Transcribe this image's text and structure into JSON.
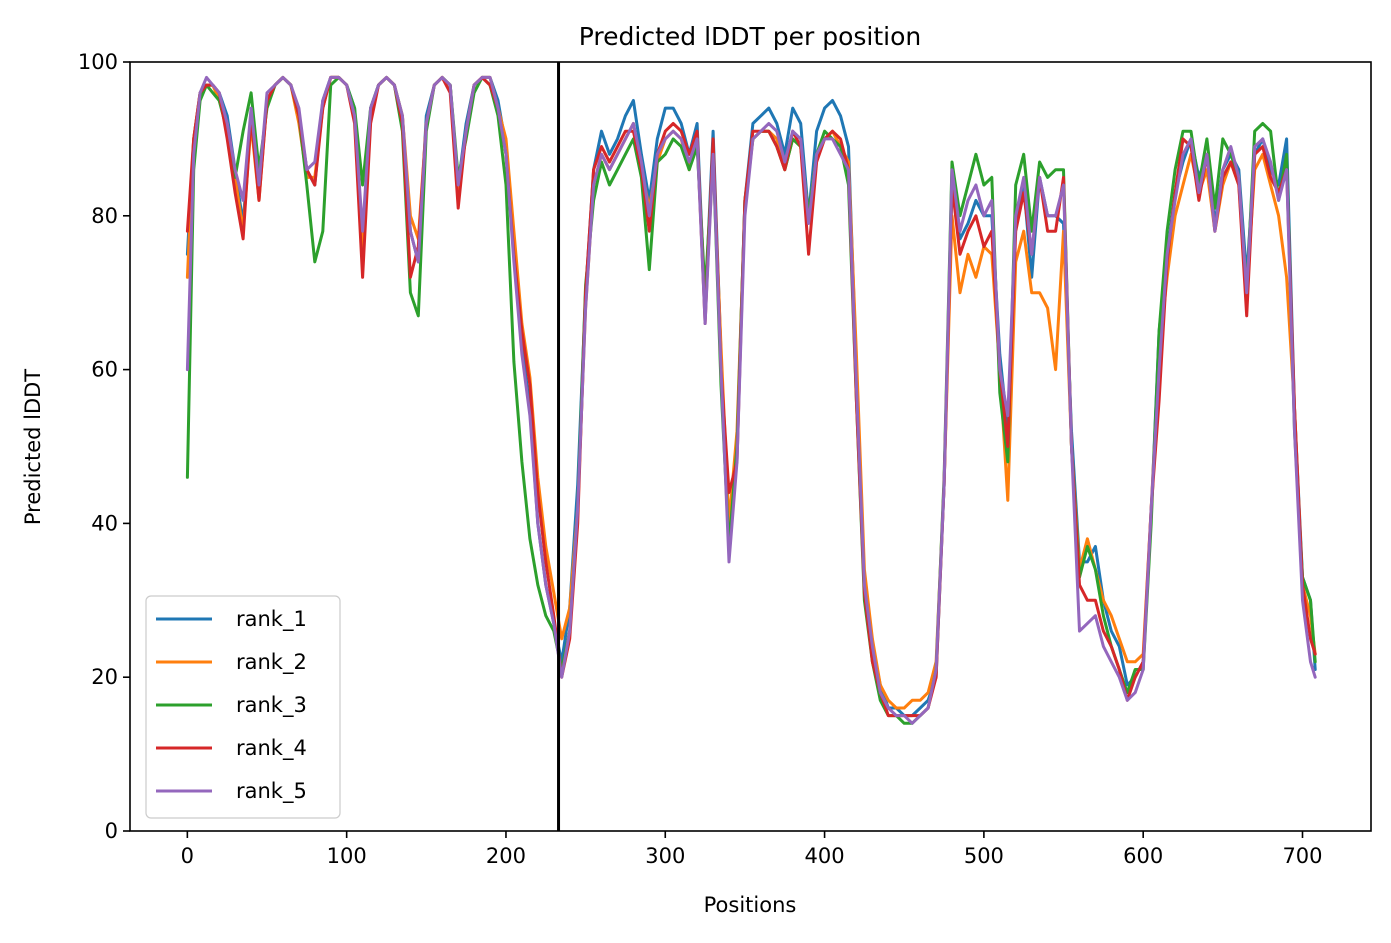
{
  "chart_data": {
    "type": "line",
    "title": "Predicted lDDT per position",
    "xlabel": "Positions",
    "ylabel": "Predicted lDDT",
    "xlim": [
      -36,
      743
    ],
    "ylim": [
      0,
      100
    ],
    "xticks": [
      0,
      100,
      200,
      300,
      400,
      500,
      600,
      700
    ],
    "yticks": [
      0,
      20,
      40,
      60,
      80,
      100
    ],
    "xtick_labels": [
      "0",
      "100",
      "200",
      "300",
      "400",
      "500",
      "600",
      "700"
    ],
    "ytick_labels": [
      "0",
      "20",
      "40",
      "60",
      "80",
      "100"
    ],
    "grid": false,
    "legend_position": "lower-left",
    "vertical_line": {
      "x": 233,
      "color": "#000000"
    },
    "x": [
      0,
      4,
      8,
      12,
      16,
      20,
      25,
      30,
      35,
      40,
      45,
      50,
      55,
      60,
      65,
      70,
      75,
      80,
      85,
      90,
      95,
      100,
      105,
      110,
      115,
      120,
      125,
      130,
      135,
      140,
      145,
      150,
      155,
      160,
      165,
      170,
      175,
      180,
      185,
      190,
      195,
      200,
      205,
      210,
      215,
      220,
      225,
      230,
      235,
      240,
      245,
      250,
      255,
      260,
      265,
      270,
      275,
      280,
      285,
      290,
      295,
      300,
      305,
      310,
      315,
      320,
      325,
      330,
      335,
      340,
      345,
      350,
      355,
      360,
      365,
      370,
      375,
      380,
      385,
      390,
      395,
      400,
      405,
      410,
      415,
      420,
      425,
      430,
      435,
      440,
      445,
      450,
      455,
      460,
      465,
      470,
      475,
      480,
      485,
      490,
      495,
      500,
      505,
      510,
      515,
      520,
      525,
      530,
      535,
      540,
      545,
      550,
      555,
      560,
      565,
      570,
      575,
      580,
      585,
      590,
      595,
      600,
      605,
      610,
      615,
      620,
      625,
      630,
      635,
      640,
      645,
      650,
      655,
      660,
      665,
      670,
      675,
      680,
      685,
      690,
      695,
      700,
      705,
      708
    ],
    "series": [
      {
        "name": "rank_1",
        "color": "#1f77b4",
        "values": [
          75,
          90,
          96,
          97,
          97,
          96,
          93,
          86,
          79,
          93,
          83,
          95,
          97,
          98,
          97,
          93,
          86,
          84,
          95,
          98,
          98,
          97,
          94,
          73,
          94,
          97,
          98,
          97,
          93,
          78,
          74,
          93,
          97,
          98,
          97,
          84,
          92,
          97,
          98,
          98,
          95,
          89,
          75,
          63,
          55,
          40,
          32,
          27,
          22,
          29,
          45,
          70,
          86,
          91,
          88,
          90,
          93,
          95,
          88,
          82,
          90,
          94,
          94,
          92,
          88,
          92,
          68,
          91,
          62,
          38,
          50,
          82,
          92,
          93,
          94,
          92,
          88,
          94,
          92,
          80,
          91,
          94,
          95,
          93,
          89,
          60,
          32,
          24,
          19,
          16,
          16,
          15,
          15,
          16,
          17,
          20,
          45,
          84,
          77,
          79,
          82,
          80,
          80,
          62,
          52,
          79,
          84,
          72,
          85,
          80,
          80,
          79,
          52,
          35,
          35,
          37,
          30,
          26,
          24,
          19,
          20,
          22,
          41,
          65,
          75,
          83,
          87,
          90,
          85,
          88,
          79,
          86,
          88,
          86,
          72,
          88,
          90,
          86,
          84,
          90,
          55,
          33,
          30,
          21
        ]
      },
      {
        "name": "rank_2",
        "color": "#ff7f0e",
        "values": [
          72,
          90,
          96,
          97,
          97,
          95,
          92,
          85,
          78,
          92,
          82,
          95,
          97,
          98,
          97,
          92,
          85,
          85,
          94,
          98,
          98,
          97,
          93,
          76,
          93,
          97,
          98,
          97,
          93,
          80,
          77,
          92,
          97,
          98,
          97,
          82,
          91,
          97,
          98,
          98,
          94,
          90,
          78,
          66,
          59,
          46,
          37,
          31,
          25,
          29,
          42,
          68,
          84,
          88,
          86,
          88,
          90,
          92,
          86,
          81,
          87,
          90,
          91,
          90,
          86,
          90,
          67,
          88,
          63,
          40,
          52,
          81,
          90,
          91,
          91,
          90,
          86,
          90,
          89,
          80,
          88,
          90,
          91,
          89,
          87,
          62,
          34,
          25,
          19,
          17,
          16,
          16,
          17,
          17,
          18,
          22,
          45,
          80,
          70,
          75,
          72,
          76,
          75,
          60,
          43,
          74,
          78,
          70,
          70,
          68,
          60,
          78,
          50,
          34,
          38,
          34,
          30,
          28,
          25,
          22,
          22,
          23,
          42,
          62,
          72,
          80,
          84,
          88,
          83,
          86,
          78,
          84,
          87,
          84,
          70,
          86,
          88,
          84,
          80,
          72,
          55,
          32,
          28,
          23
        ]
      },
      {
        "name": "rank_3",
        "color": "#2ca02c",
        "values": [
          46,
          86,
          95,
          97,
          96,
          95,
          91,
          85,
          91,
          96,
          86,
          94,
          97,
          98,
          97,
          93,
          84,
          74,
          78,
          97,
          98,
          97,
          94,
          84,
          94,
          97,
          98,
          97,
          91,
          70,
          67,
          91,
          97,
          98,
          97,
          85,
          90,
          96,
          98,
          97,
          93,
          84,
          61,
          48,
          38,
          32,
          28,
          26,
          21,
          26,
          42,
          71,
          82,
          87,
          84,
          86,
          88,
          90,
          85,
          73,
          87,
          88,
          90,
          89,
          86,
          89,
          70,
          88,
          58,
          37,
          50,
          82,
          90,
          91,
          91,
          89,
          86,
          90,
          89,
          80,
          88,
          91,
          90,
          89,
          84,
          56,
          30,
          22,
          17,
          15,
          15,
          14,
          14,
          15,
          16,
          21,
          46,
          87,
          80,
          84,
          88,
          84,
          85,
          57,
          48,
          84,
          88,
          78,
          87,
          85,
          86,
          86,
          50,
          33,
          37,
          34,
          28,
          24,
          21,
          18,
          21,
          21,
          40,
          65,
          78,
          86,
          91,
          91,
          84,
          90,
          81,
          90,
          88,
          85,
          70,
          91,
          92,
          91,
          82,
          88,
          52,
          33,
          30,
          22
        ]
      },
      {
        "name": "rank_4",
        "color": "#d62728",
        "values": [
          78,
          90,
          96,
          97,
          97,
          96,
          90,
          83,
          77,
          93,
          82,
          95,
          97,
          98,
          97,
          93,
          86,
          84,
          94,
          98,
          98,
          97,
          92,
          72,
          92,
          97,
          98,
          97,
          92,
          72,
          76,
          92,
          97,
          98,
          96,
          81,
          91,
          97,
          98,
          97,
          94,
          88,
          75,
          65,
          58,
          44,
          35,
          28,
          20,
          25,
          40,
          70,
          86,
          89,
          87,
          89,
          91,
          91,
          86,
          78,
          88,
          91,
          92,
          91,
          88,
          91,
          66,
          90,
          60,
          44,
          48,
          82,
          91,
          91,
          91,
          89,
          86,
          91,
          89,
          75,
          87,
          90,
          91,
          90,
          86,
          56,
          31,
          22,
          18,
          15,
          15,
          15,
          15,
          15,
          16,
          20,
          45,
          84,
          75,
          78,
          80,
          76,
          78,
          60,
          50,
          78,
          83,
          75,
          85,
          78,
          78,
          85,
          50,
          32,
          30,
          30,
          26,
          24,
          21,
          17,
          20,
          22,
          42,
          56,
          74,
          83,
          90,
          89,
          82,
          88,
          78,
          85,
          87,
          84,
          67,
          88,
          89,
          85,
          83,
          86,
          55,
          32,
          25,
          23
        ]
      },
      {
        "name": "rank_5",
        "color": "#9467bd",
        "values": [
          60,
          88,
          96,
          98,
          97,
          96,
          92,
          86,
          82,
          94,
          84,
          96,
          97,
          98,
          97,
          94,
          86,
          87,
          95,
          98,
          98,
          97,
          93,
          78,
          94,
          97,
          98,
          97,
          93,
          78,
          74,
          92,
          97,
          98,
          97,
          84,
          91,
          97,
          98,
          98,
          94,
          88,
          74,
          62,
          54,
          40,
          32,
          27,
          20,
          26,
          42,
          68,
          84,
          88,
          86,
          88,
          90,
          92,
          87,
          80,
          88,
          90,
          91,
          90,
          87,
          90,
          66,
          88,
          60,
          35,
          48,
          80,
          90,
          91,
          92,
          91,
          87,
          91,
          90,
          79,
          88,
          90,
          90,
          88,
          86,
          58,
          32,
          24,
          18,
          16,
          15,
          15,
          14,
          15,
          16,
          21,
          45,
          86,
          78,
          82,
          84,
          80,
          82,
          60,
          54,
          80,
          85,
          75,
          85,
          80,
          80,
          84,
          50,
          26,
          27,
          28,
          24,
          22,
          20,
          17,
          18,
          21,
          42,
          60,
          75,
          82,
          88,
          90,
          83,
          88,
          78,
          86,
          89,
          85,
          70,
          89,
          90,
          87,
          82,
          86,
          52,
          30,
          22,
          20
        ]
      }
    ]
  }
}
